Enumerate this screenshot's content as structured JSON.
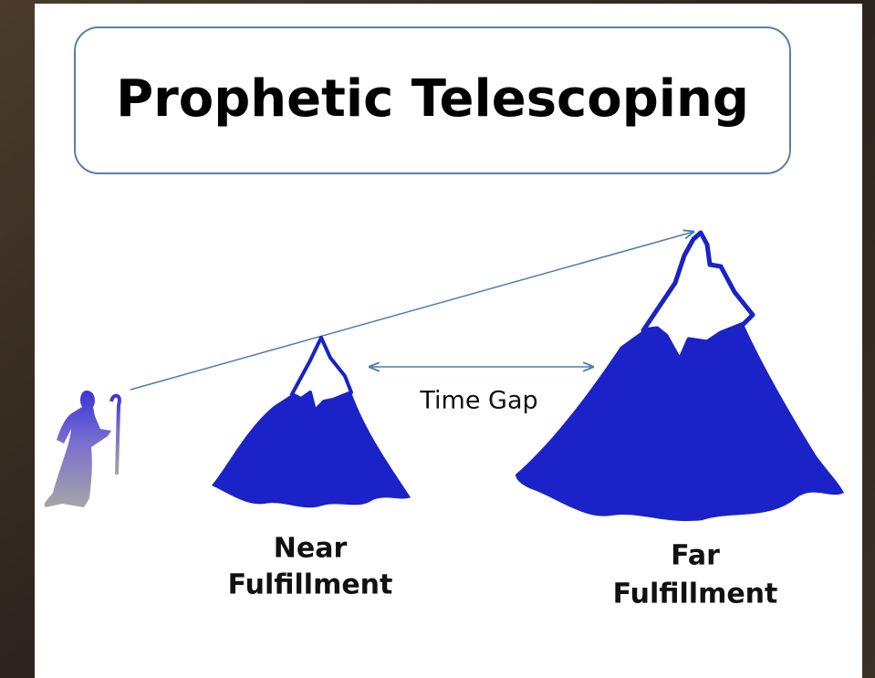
{
  "title": "Prophetic Telescoping",
  "labels": {
    "time_gap": "Time Gap",
    "near": [
      "Near",
      "Fulfillment"
    ],
    "far": [
      "Far",
      "Fulfillment"
    ]
  }
}
